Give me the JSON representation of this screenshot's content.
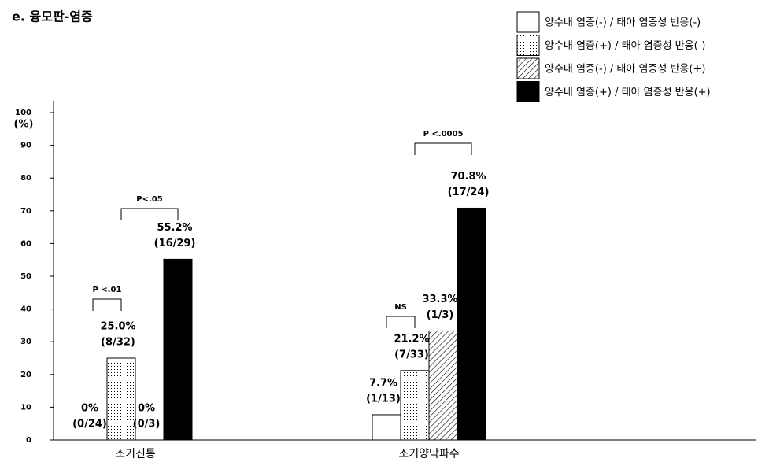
{
  "chart_data": {
    "type": "bar",
    "title": "e. 융모판-염증",
    "ylabel": "(%)",
    "categories": [
      "조기진통",
      "조기양막파수"
    ],
    "series": [
      {
        "name": "양수내 염증(-) / 태아 염증성 반응(-)",
        "color": "#ffffff",
        "pattern": "none",
        "values": [
          0,
          7.7
        ],
        "value_labels": [
          "0%",
          "7.7%"
        ],
        "value_counts": [
          "(0/24)",
          "(1/13)"
        ]
      },
      {
        "name": "양수내 염증(+) / 태아 염증성 반응(-)",
        "color": "#ffffff",
        "pattern": "dots",
        "values": [
          25.0,
          21.2
        ],
        "value_labels": [
          "25.0%",
          "21.2%"
        ],
        "value_counts": [
          "(8/32)",
          "(7/33)"
        ]
      },
      {
        "name": "양수내 염증(-) / 태아 염증성 반응(+)",
        "color": "#ffffff",
        "pattern": "hatch",
        "values": [
          0,
          33.3
        ],
        "value_labels": [
          "0%",
          "33.3%"
        ],
        "value_counts": [
          "(0/3)",
          "(1/3)"
        ]
      },
      {
        "name": "양수내 염증(+) / 태아 염증성 반응(+)",
        "color": "#000000",
        "pattern": "none",
        "values": [
          55.2,
          70.8
        ],
        "value_labels": [
          "55.2%",
          "70.8%"
        ],
        "value_counts": [
          "(16/29)",
          "(17/24)"
        ]
      }
    ],
    "annotations": [
      "P <.01",
      "P<.05",
      "NS",
      "P <.0005"
    ],
    "ylim": [
      0,
      100
    ],
    "yticks": [
      0,
      10,
      20,
      30,
      40,
      50,
      60,
      70,
      80,
      90,
      100
    ],
    "legend": "top-right"
  }
}
